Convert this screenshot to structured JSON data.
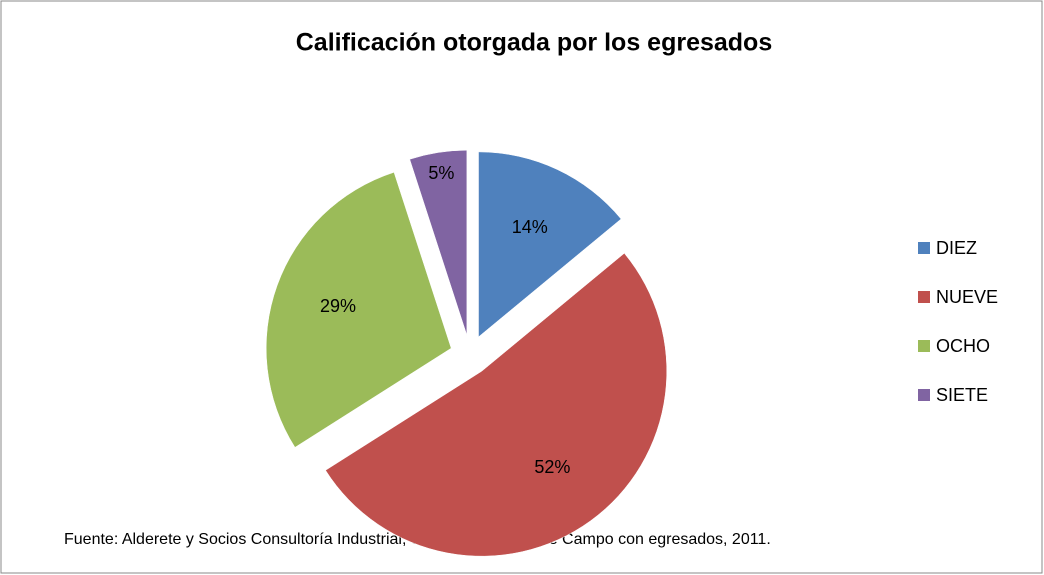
{
  "chart_data": {
    "type": "pie",
    "title": "Calificación otorgada por los egresados",
    "categories": [
      "DIEZ",
      "NUEVE",
      "OCHO",
      "SIETE"
    ],
    "values": [
      14,
      52,
      29,
      5
    ],
    "value_labels": [
      "14%",
      "52%",
      "29%",
      "5%"
    ],
    "colors": [
      "#4f81bd",
      "#c0504d",
      "#9bbb59",
      "#8064a2"
    ],
    "legend": "right",
    "exploded": true,
    "source": "Fuente: Alderete y Socios Consultoría Industrial, SC. Investigación de Campo con egresados, 2011."
  }
}
